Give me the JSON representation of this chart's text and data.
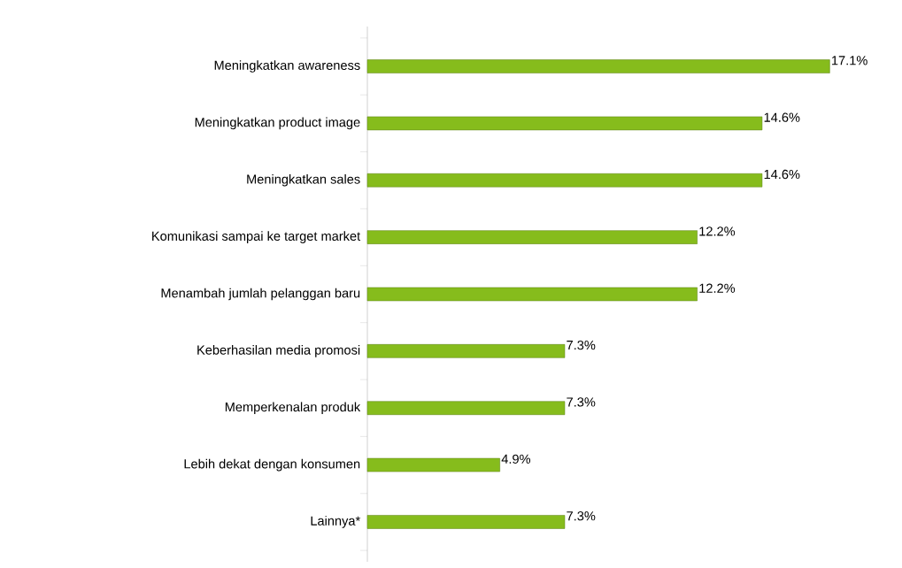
{
  "chart_data": {
    "type": "bar",
    "orientation": "horizontal",
    "categories": [
      "Meningkatkan awareness",
      "Meningkatkan product image",
      "Meningkatkan sales",
      "Komunikasi sampai ke target market",
      "Menambah jumlah pelanggan baru",
      "Keberhasilan media promosi",
      "Memperkenalan produk",
      "Lebih dekat dengan konsumen",
      "Lainnya*"
    ],
    "values": [
      17.1,
      14.6,
      14.6,
      12.2,
      12.2,
      7.3,
      7.3,
      4.9,
      7.3
    ],
    "value_labels": [
      "17.1%",
      "14.6%",
      "14.6%",
      "12.2%",
      "12.2%",
      "7.3%",
      "7.3%",
      "4.9%",
      "7.3%"
    ],
    "color": "#86bc1c"
  }
}
